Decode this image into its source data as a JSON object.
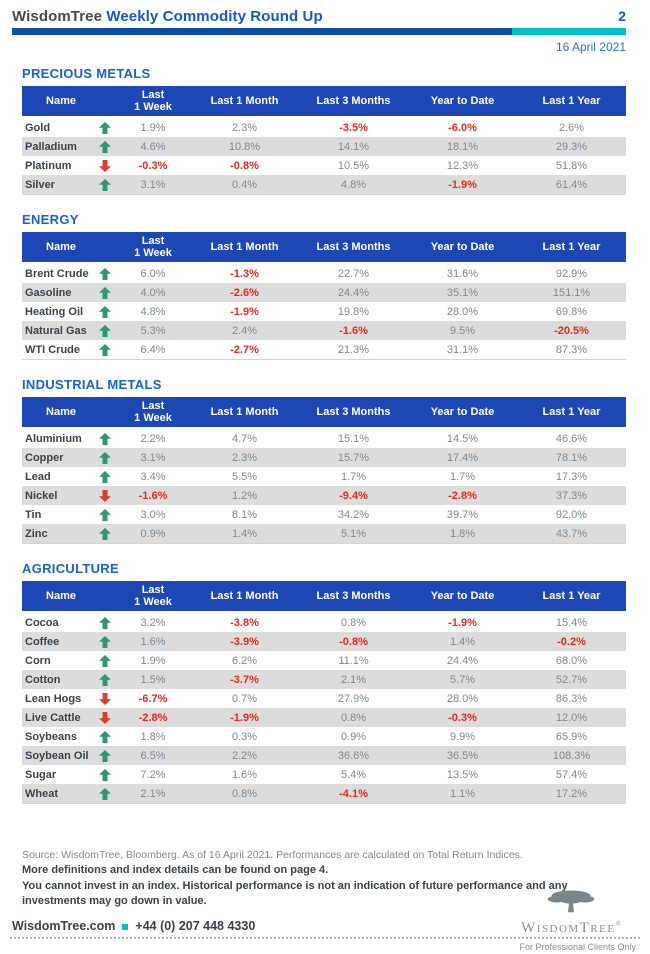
{
  "header": {
    "brand": "WisdomTree",
    "title": "Weekly Commodity Round Up",
    "page_number": "2",
    "date": "16 April 2021"
  },
  "columns": {
    "name": "Name",
    "week_line1": "Last",
    "week_line2": "1 Week",
    "rest": [
      "Last 1 Month",
      "Last 3 Months",
      "Year to Date",
      "Last 1 Year"
    ]
  },
  "sections": [
    {
      "title": "PRECIOUS METALS",
      "rows": [
        {
          "name": "Gold",
          "trend": "up",
          "values": [
            "1.9%",
            "2.3%",
            "-3.5%",
            "-6.0%",
            "2.6%"
          ]
        },
        {
          "name": "Palladium",
          "trend": "up",
          "values": [
            "4.6%",
            "10.8%",
            "14.1%",
            "18.1%",
            "29.3%"
          ]
        },
        {
          "name": "Platinum",
          "trend": "down",
          "values": [
            "-0.3%",
            "-0.8%",
            "10.5%",
            "12.3%",
            "51.8%"
          ]
        },
        {
          "name": "Silver",
          "trend": "up",
          "values": [
            "3.1%",
            "0.4%",
            "4.8%",
            "-1.9%",
            "61.4%"
          ]
        }
      ]
    },
    {
      "title": "ENERGY",
      "rows": [
        {
          "name": "Brent Crude",
          "trend": "up",
          "values": [
            "6.0%",
            "-1.3%",
            "22.7%",
            "31.6%",
            "92.9%"
          ]
        },
        {
          "name": "Gasoline",
          "trend": "up",
          "values": [
            "4.0%",
            "-2.6%",
            "24.4%",
            "35.1%",
            "151.1%"
          ]
        },
        {
          "name": "Heating Oil",
          "trend": "up",
          "values": [
            "4.8%",
            "-1.9%",
            "19.8%",
            "28.0%",
            "69.8%"
          ]
        },
        {
          "name": "Natural Gas",
          "trend": "up",
          "values": [
            "5.3%",
            "2.4%",
            "-1.6%",
            "9.5%",
            "-20.5%"
          ]
        },
        {
          "name": "WTI Crude",
          "trend": "up",
          "values": [
            "6.4%",
            "-2.7%",
            "21.3%",
            "31.1%",
            "87.3%"
          ]
        }
      ]
    },
    {
      "title": "INDUSTRIAL METALS",
      "rows": [
        {
          "name": "Aluminium",
          "trend": "up",
          "values": [
            "2.2%",
            "4.7%",
            "15.1%",
            "14.5%",
            "46.6%"
          ]
        },
        {
          "name": "Copper",
          "trend": "up",
          "values": [
            "3.1%",
            "2.3%",
            "15.7%",
            "17.4%",
            "78.1%"
          ]
        },
        {
          "name": "Lead",
          "trend": "up",
          "values": [
            "3.4%",
            "5.5%",
            "1.7%",
            "1.7%",
            "17.3%"
          ]
        },
        {
          "name": "Nickel",
          "trend": "down",
          "values": [
            "-1.6%",
            "1.2%",
            "-9.4%",
            "-2.8%",
            "37.3%"
          ]
        },
        {
          "name": "Tin",
          "trend": "up",
          "values": [
            "3.0%",
            "8.1%",
            "34.2%",
            "39.7%",
            "92.0%"
          ]
        },
        {
          "name": "Zinc",
          "trend": "up",
          "values": [
            "0.9%",
            "1.4%",
            "5.1%",
            "1.8%",
            "43.7%"
          ]
        }
      ]
    },
    {
      "title": "AGRICULTURE",
      "rows": [
        {
          "name": "Cocoa",
          "trend": "up",
          "values": [
            "3.2%",
            "-3.8%",
            "0.8%",
            "-1.9%",
            "15.4%"
          ]
        },
        {
          "name": "Coffee",
          "trend": "up",
          "values": [
            "1.6%",
            "-3.9%",
            "-0.8%",
            "1.4%",
            "-0.2%"
          ]
        },
        {
          "name": "Corn",
          "trend": "up",
          "values": [
            "1.9%",
            "6.2%",
            "11.1%",
            "24.4%",
            "68.0%"
          ]
        },
        {
          "name": "Cotton",
          "trend": "up",
          "values": [
            "1.5%",
            "-3.7%",
            "2.1%",
            "5.7%",
            "52.7%"
          ]
        },
        {
          "name": "Lean Hogs",
          "trend": "down",
          "values": [
            "-6.7%",
            "0.7%",
            "27.9%",
            "28.0%",
            "86.3%"
          ]
        },
        {
          "name": "Live Cattle",
          "trend": "down",
          "values": [
            "-2.8%",
            "-1.9%",
            "0.8%",
            "-0.3%",
            "12.0%"
          ]
        },
        {
          "name": "Soybeans",
          "trend": "up",
          "values": [
            "1.8%",
            "0.3%",
            "0.9%",
            "9.9%",
            "65.9%"
          ]
        },
        {
          "name": "Soybean Oil",
          "trend": "up",
          "values": [
            "6.5%",
            "2.2%",
            "36.6%",
            "36.5%",
            "108.3%"
          ]
        },
        {
          "name": "Sugar",
          "trend": "up",
          "values": [
            "7.2%",
            "1.6%",
            "5.4%",
            "13.5%",
            "57.4%"
          ]
        },
        {
          "name": "Wheat",
          "trend": "up",
          "values": [
            "2.1%",
            "0.8%",
            "-4.1%",
            "1.1%",
            "17.2%"
          ]
        }
      ]
    }
  ],
  "footnotes": {
    "source": "Source: WisdomTree, Bloomberg. As of 16 April 2021. Performances are calculated on Total Return Indices.",
    "definitions": "More definitions and index details can be found on page 4.",
    "disclaimer": "You cannot invest in an index. Historical performance is not an indication of future performance and any investments may go down in value."
  },
  "footer": {
    "website": "WisdomTree.com",
    "phone": "+44 (0) 207 448 4330",
    "logo_text": "WisdomTree",
    "logo_reg": "®",
    "tagline": "For Professional Clients Only"
  },
  "colors": {
    "accent_blue": "#1c47b4",
    "section_blue": "#1565c8",
    "bar_navy": "#0c4fa4",
    "teal": "#00c2c4",
    "positive_green": "#2e9673",
    "negative_red": "#e42a22",
    "arrow_red": "#d8402b"
  }
}
